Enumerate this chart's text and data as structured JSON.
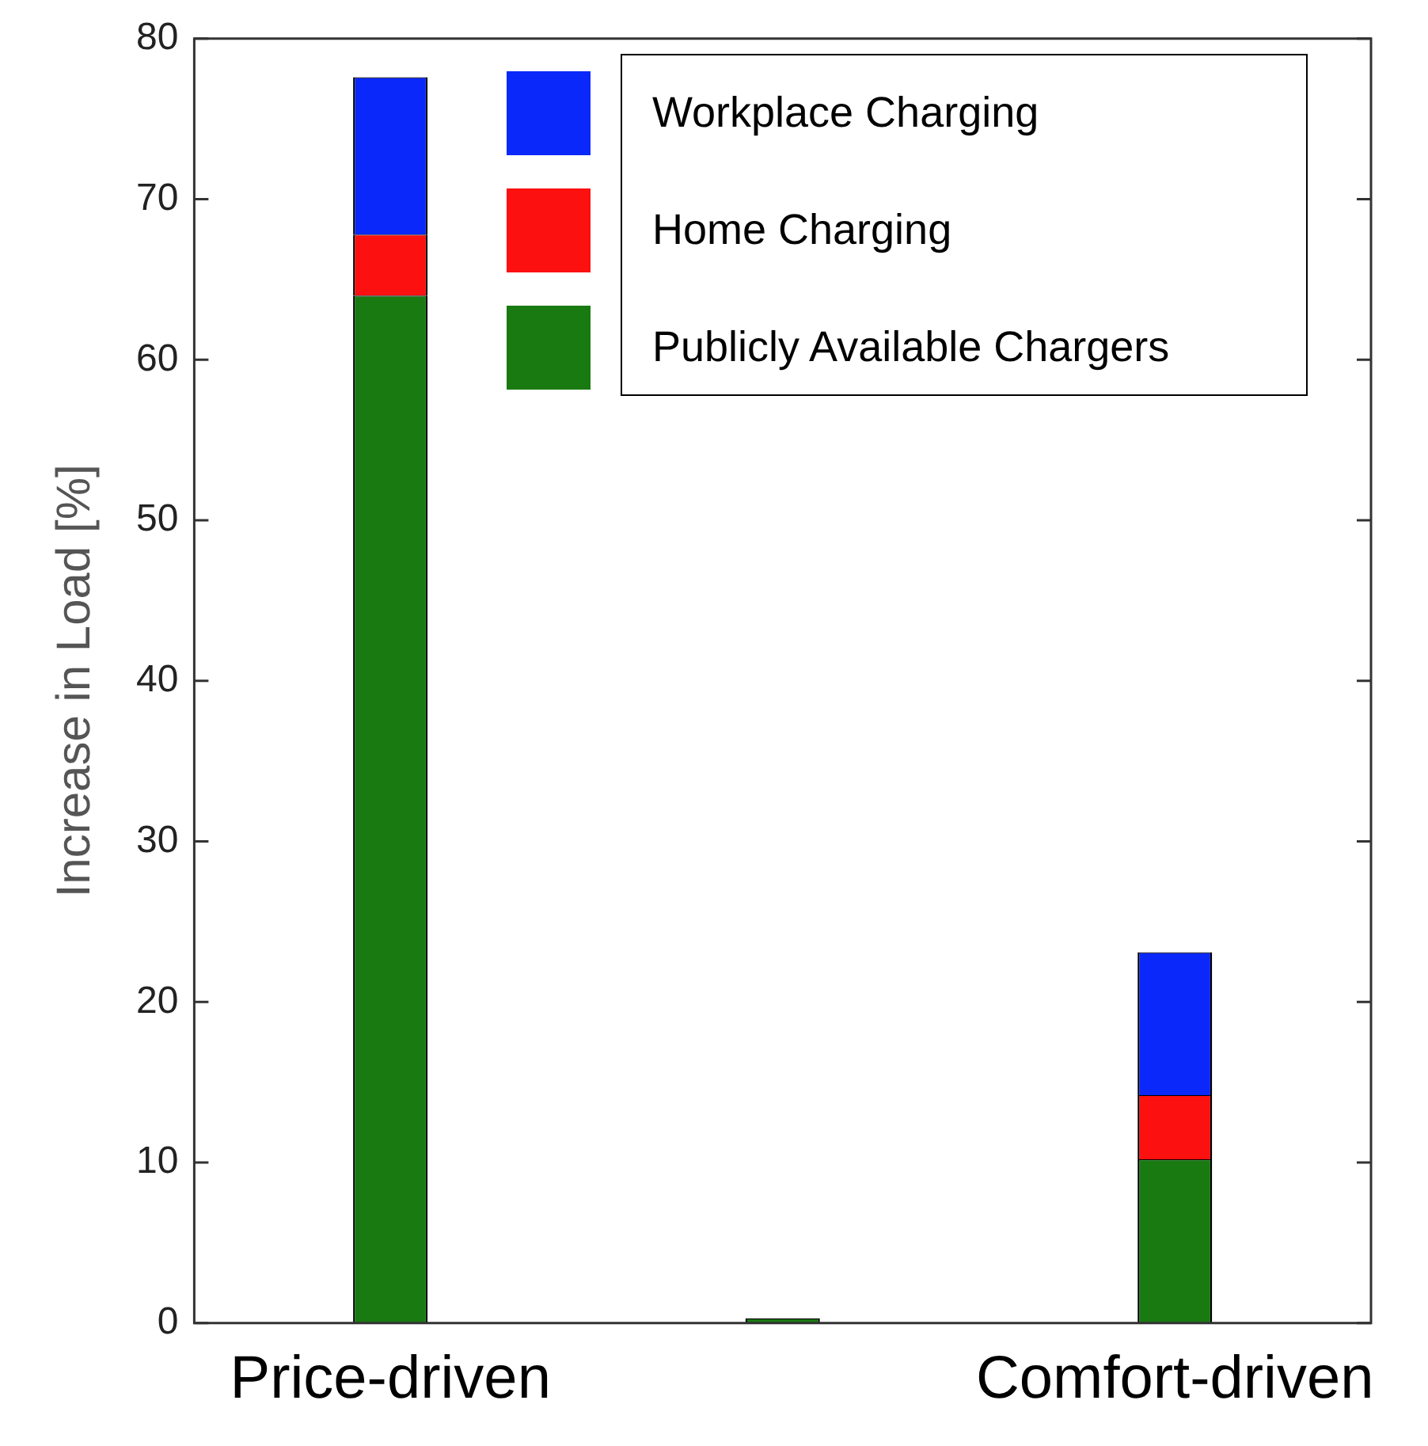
{
  "chart_data": {
    "type": "bar",
    "stacked": true,
    "ylabel": "Increase in Load [%]",
    "categories": [
      "Price-driven",
      null,
      "Comfort-driven"
    ],
    "series": [
      {
        "name": "Publicly Available Chargers",
        "color": "#1a7a12",
        "values": [
          64.0,
          0.3,
          10.2
        ]
      },
      {
        "name": "Home Charging",
        "color": "#fc1010",
        "values": [
          3.8,
          null,
          4.0
        ]
      },
      {
        "name": "Workplace Charging",
        "color": "#0a28fa",
        "values": [
          9.8,
          null,
          8.9
        ]
      }
    ],
    "ylim": [
      0,
      80
    ],
    "yticks": [
      0,
      10,
      20,
      30,
      40,
      50,
      60,
      70,
      80
    ],
    "grid": false,
    "legend": "top right"
  }
}
